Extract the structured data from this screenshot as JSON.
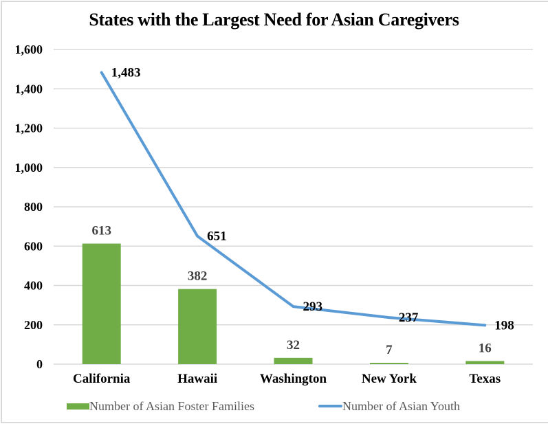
{
  "chart_data": {
    "type": "bar+line",
    "title": "States with the Largest Need for Asian Caregivers",
    "xlabel": "",
    "ylabel": "",
    "categories": [
      "California",
      "Hawaii",
      "Washington",
      "New York",
      "Texas"
    ],
    "series": [
      {
        "name": "Number of Asian Foster Families",
        "type": "bar",
        "color": "#70ad47",
        "values": [
          613,
          382,
          32,
          7,
          16
        ],
        "labels": [
          "613",
          "382",
          "32",
          "7",
          "16"
        ]
      },
      {
        "name": "Number of Asian Youth",
        "type": "line",
        "color": "#5b9bd5",
        "values": [
          1483,
          651,
          293,
          237,
          198
        ],
        "labels": [
          "1,483",
          "651",
          "293",
          "237",
          "198"
        ]
      }
    ],
    "ylim": [
      0,
      1600
    ],
    "yticks": [
      0,
      200,
      400,
      600,
      800,
      1000,
      1200,
      1400,
      1600
    ],
    "ytick_labels": [
      "0",
      "200",
      "400",
      "600",
      "800",
      "1,000",
      "1,200",
      "1,400",
      "1,600"
    ],
    "grid": true,
    "legend_position": "bottom",
    "gridline_color": "#d9d9d9"
  }
}
